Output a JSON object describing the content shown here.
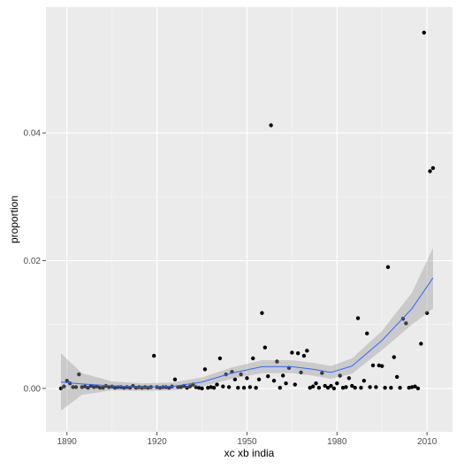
{
  "chart_data": {
    "type": "scatter",
    "x_label": "xc xb india",
    "y_label": "proportion",
    "xlim": [
      1883,
      2018.5
    ],
    "ylim": [
      -0.0068,
      0.0597
    ],
    "xticks": [
      1890,
      1920,
      1950,
      1980,
      2010
    ],
    "yticks": [
      {
        "value": 0,
        "label": "0.00"
      },
      {
        "value": 0.02,
        "label": "0.02"
      },
      {
        "value": 0.04,
        "label": "0.04"
      }
    ],
    "grid": true,
    "point_color": "#000000",
    "smooth_color": "#3366ff",
    "band_color": "#999999",
    "x": [
      1888,
      1889,
      1890,
      1891,
      1892,
      1893,
      1894,
      1895,
      1896,
      1897,
      1898,
      1899,
      1900,
      1901,
      1902,
      1903,
      1904,
      1905,
      1906,
      1907,
      1908,
      1909,
      1910,
      1911,
      1912,
      1913,
      1914,
      1915,
      1916,
      1917,
      1918,
      1919,
      1920,
      1921,
      1922,
      1923,
      1924,
      1925,
      1926,
      1927,
      1928,
      1929,
      1930,
      1931,
      1932,
      1933,
      1934,
      1935,
      1936,
      1937,
      1938,
      1939,
      1940,
      1941,
      1942,
      1943,
      1944,
      1945,
      1946,
      1947,
      1948,
      1949,
      1950,
      1951,
      1952,
      1953,
      1954,
      1955,
      1956,
      1957,
      1958,
      1959,
      1960,
      1961,
      1962,
      1963,
      1964,
      1965,
      1966,
      1967,
      1968,
      1969,
      1970,
      1971,
      1972,
      1973,
      1974,
      1975,
      1976,
      1977,
      1978,
      1979,
      1980,
      1981,
      1982,
      1983,
      1984,
      1985,
      1986,
      1987,
      1988,
      1989,
      1990,
      1991,
      1992,
      1993,
      1994,
      1995,
      1996,
      1997,
      1998,
      1999,
      2000,
      2001,
      2002,
      2003,
      2004,
      2005,
      2006,
      2007,
      2008,
      2009,
      2010,
      2011,
      2012
    ],
    "values": [
      0.0,
      0.0003,
      0.0012,
      0.0008,
      0.0002,
      0.0002,
      0.0022,
      0.0002,
      0.0003,
      0.0001,
      0.0004,
      0.0002,
      0.0003,
      0.0001,
      0.0001,
      0.0004,
      0.0002,
      0.0003,
      0.0001,
      0.0002,
      0.0002,
      0.0001,
      0.0002,
      0.0001,
      0.0004,
      0.0001,
      0.0002,
      0.0001,
      0.0002,
      0.0001,
      0.0002,
      0.0051,
      0.0002,
      0.0001,
      0.0002,
      0.0002,
      0.0001,
      0.0003,
      0.0014,
      0.0002,
      0.0002,
      0.0004,
      0.0001,
      0.0003,
      0.0006,
      0.0002,
      0.0001,
      0.0,
      0.003,
      0.0001,
      0.0002,
      0.0001,
      0.0006,
      0.0047,
      0.0003,
      0.0022,
      0.0002,
      0.0026,
      0.0014,
      0.0001,
      0.0022,
      0.0001,
      0.0016,
      0.0002,
      0.0047,
      0.0001,
      0.0014,
      0.0118,
      0.0064,
      0.0019,
      0.0412,
      0.0012,
      0.0042,
      0.0001,
      0.002,
      0.0008,
      0.0032,
      0.0056,
      0.0006,
      0.0055,
      0.0025,
      0.0051,
      0.0059,
      0.0001,
      0.0003,
      0.0008,
      0.0001,
      0.0024,
      0.0004,
      0.0001,
      0.0004,
      0.0,
      0.0008,
      0.002,
      0.0001,
      0.0002,
      0.0016,
      0.0004,
      0.0001,
      0.011,
      0.0001,
      0.0012,
      0.0086,
      0.0002,
      0.0036,
      0.0002,
      0.0036,
      0.0035,
      0.0001,
      0.019,
      0.0001,
      0.0049,
      0.0018,
      0.0001,
      0.0109,
      0.0102,
      0.0001,
      0.0002,
      0.0003,
      0.0,
      0.007,
      0.0557,
      0.0118,
      0.034,
      0.0345
    ],
    "smooth": {
      "x": [
        1888,
        1895,
        1905,
        1915,
        1925,
        1935,
        1945,
        1955,
        1965,
        1972,
        1978,
        1985,
        1995,
        2005,
        2012
      ],
      "values": [
        0.001,
        0.0007,
        0.0004,
        0.0002,
        0.0003,
        0.001,
        0.0024,
        0.0034,
        0.0034,
        0.003,
        0.0025,
        0.0035,
        0.0075,
        0.0125,
        0.0173
      ],
      "lower": [
        -0.0035,
        -0.001,
        -0.0003,
        -0.0004,
        -0.0003,
        0.0003,
        0.0015,
        0.0024,
        0.0024,
        0.002,
        0.0015,
        0.0023,
        0.006,
        0.01,
        0.0125
      ],
      "upper": [
        0.0055,
        0.0024,
        0.0011,
        0.0008,
        0.0009,
        0.0017,
        0.0033,
        0.0044,
        0.0044,
        0.004,
        0.0035,
        0.0047,
        0.009,
        0.015,
        0.022
      ]
    }
  }
}
